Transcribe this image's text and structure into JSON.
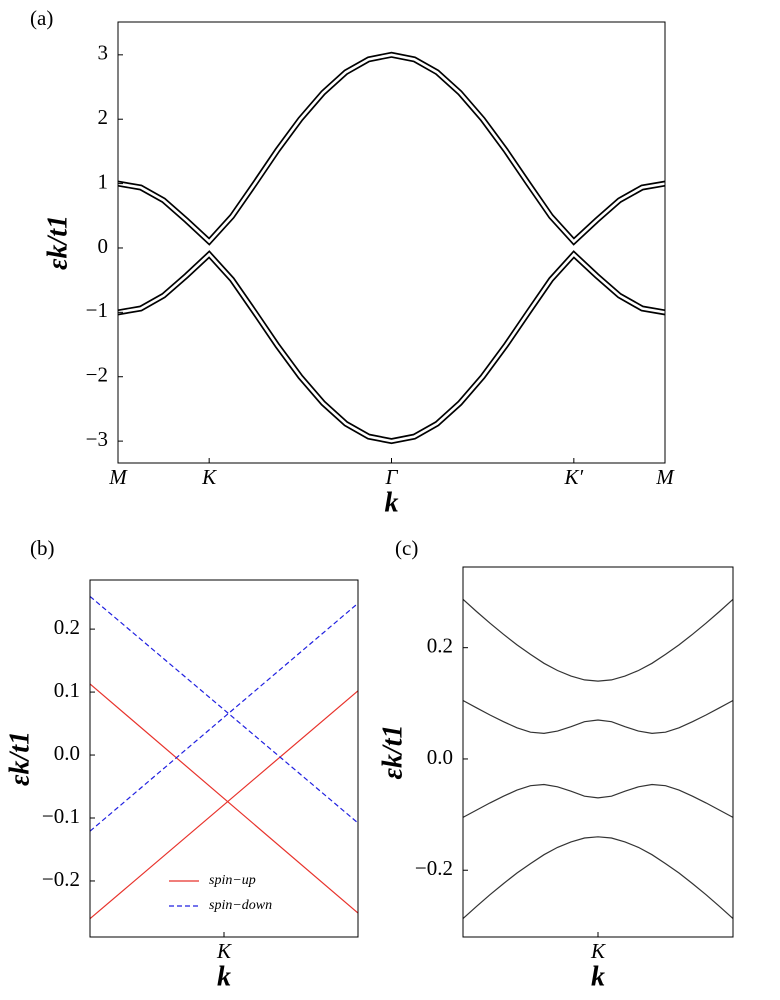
{
  "chart_data": [
    {
      "type": "line",
      "panel_label": "(a)",
      "xlabel": "k",
      "ylabel": "εk/t1",
      "line_style": "outlined",
      "x": [
        0,
        0.25,
        0.5,
        0.75,
        1,
        1.25,
        1.5,
        1.75,
        2,
        2.25,
        2.5,
        2.75,
        3,
        3.25,
        3.5,
        3.75,
        4,
        4.25,
        4.5,
        4.75,
        5,
        5.25,
        5.5,
        5.75,
        6
      ],
      "series": [
        {
          "color": "#000000",
          "values": [
            1.0,
            0.94,
            0.74,
            0.43,
            0.1,
            0.49,
            1.0,
            1.52,
            2.0,
            2.41,
            2.73,
            2.93,
            3.0,
            2.93,
            2.73,
            2.41,
            2.0,
            1.52,
            1.0,
            0.49,
            0.1,
            0.43,
            0.74,
            0.94,
            1.0
          ]
        },
        {
          "color": "#000000",
          "values": [
            -1.0,
            -0.94,
            -0.74,
            -0.43,
            -0.1,
            -0.49,
            -1.0,
            -1.52,
            -2.0,
            -2.41,
            -2.73,
            -2.93,
            -3.0,
            -2.93,
            -2.73,
            -2.41,
            -2.0,
            -1.52,
            -1.0,
            -0.49,
            -0.1,
            -0.43,
            -0.74,
            -0.94,
            -1.0
          ]
        }
      ],
      "xlim": [
        0,
        6
      ],
      "xticks": [
        {
          "value": 0,
          "label": "M"
        },
        {
          "value": 1,
          "label": "K"
        },
        {
          "value": 3,
          "label": "Γ"
        },
        {
          "value": 5,
          "label": "K′"
        },
        {
          "value": 6,
          "label": "M"
        }
      ],
      "ylim": [
        -3.34,
        3.51
      ],
      "yticks": [
        {
          "value": -3,
          "label": "−3"
        },
        {
          "value": -2,
          "label": "−2"
        },
        {
          "value": -1,
          "label": "−1"
        },
        0,
        1,
        2,
        3
      ]
    },
    {
      "type": "line",
      "panel_label": "(b)",
      "xlabel": "k",
      "ylabel": "εk/t1",
      "legend": "lower center",
      "x": [
        -1,
        1
      ],
      "series": [
        {
          "name": "spin−up",
          "color": "#e8322b",
          "dash": "solid",
          "lines": [
            [
              0.113,
              -0.251
            ],
            [
              -0.26,
              0.102
            ]
          ]
        },
        {
          "name": "spin−down",
          "color": "#2020e0",
          "dash": "dashed",
          "lines": [
            [
              0.252,
              -0.108
            ],
            [
              -0.121,
              0.241
            ]
          ]
        }
      ],
      "xlim": [
        -1,
        1
      ],
      "xticks": [
        {
          "value": 0,
          "label": "K"
        }
      ],
      "ylim": [
        -0.289,
        0.278
      ],
      "yticks": [
        {
          "value": -0.2,
          "label": "−0.2"
        },
        {
          "value": -0.1,
          "label": "−0.1"
        },
        {
          "value": 0,
          "label": "0.0"
        },
        0.1,
        0.2
      ]
    },
    {
      "type": "line",
      "panel_label": "(c)",
      "xlabel": "k",
      "ylabel": "εk/t1",
      "x": [
        -1,
        -0.9,
        -0.8,
        -0.7,
        -0.6,
        -0.5,
        -0.4,
        -0.3,
        -0.2,
        -0.1,
        0,
        0.1,
        0.2,
        0.3,
        0.4,
        0.5,
        0.6,
        0.7,
        0.8,
        0.9,
        1
      ],
      "series": [
        {
          "color": "#333333",
          "values": [
            0.287,
            0.265,
            0.244,
            0.224,
            0.205,
            0.188,
            0.172,
            0.159,
            0.149,
            0.142,
            0.14,
            0.142,
            0.149,
            0.159,
            0.172,
            0.188,
            0.205,
            0.224,
            0.244,
            0.265,
            0.287
          ]
        },
        {
          "color": "#333333",
          "values": [
            0.105,
            0.092,
            0.079,
            0.067,
            0.056,
            0.048,
            0.046,
            0.05,
            0.058,
            0.067,
            0.07,
            0.067,
            0.058,
            0.05,
            0.046,
            0.048,
            0.056,
            0.067,
            0.079,
            0.092,
            0.105
          ]
        },
        {
          "color": "#333333",
          "values": [
            -0.105,
            -0.092,
            -0.079,
            -0.067,
            -0.056,
            -0.048,
            -0.046,
            -0.05,
            -0.058,
            -0.067,
            -0.07,
            -0.067,
            -0.058,
            -0.05,
            -0.046,
            -0.048,
            -0.056,
            -0.067,
            -0.079,
            -0.092,
            -0.105
          ]
        },
        {
          "color": "#333333",
          "values": [
            -0.287,
            -0.265,
            -0.244,
            -0.224,
            -0.205,
            -0.188,
            -0.172,
            -0.159,
            -0.149,
            -0.142,
            -0.14,
            -0.142,
            -0.149,
            -0.159,
            -0.172,
            -0.188,
            -0.205,
            -0.224,
            -0.244,
            -0.265,
            -0.287
          ]
        }
      ],
      "xlim": [
        -1,
        1
      ],
      "xticks": [
        {
          "value": 0,
          "label": "K"
        }
      ],
      "ylim": [
        -0.32,
        0.345
      ],
      "yticks": [
        {
          "value": -0.2,
          "label": "−0.2"
        },
        {
          "value": 0,
          "label": "0.0"
        },
        0.2
      ]
    }
  ]
}
